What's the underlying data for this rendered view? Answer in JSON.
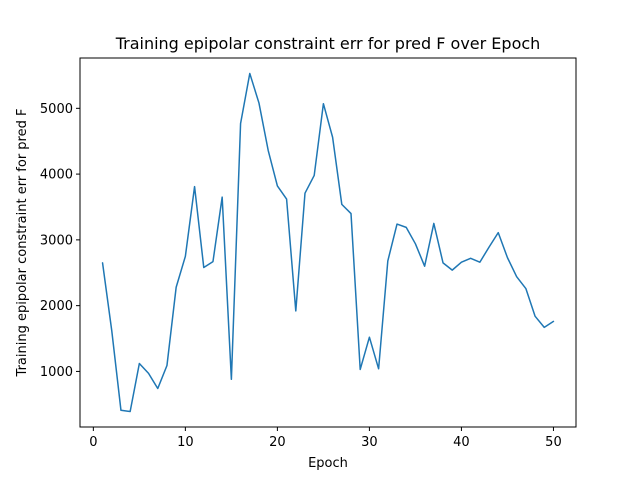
{
  "chart_data": {
    "type": "line",
    "title": "Training epipolar constraint err for pred F over Epoch",
    "xlabel": "Epoch",
    "ylabel": "Training epipolar constraint err for pred F",
    "xlim": [
      -1.45,
      52.45
    ],
    "ylim": [
      155,
      5765
    ],
    "xticks": [
      0,
      10,
      20,
      30,
      40,
      50
    ],
    "yticks": [
      1000,
      2000,
      3000,
      4000,
      5000
    ],
    "grid": false,
    "series": [
      {
        "color": "#1f77b4",
        "x": [
          1,
          2,
          3,
          4,
          5,
          6,
          7,
          8,
          9,
          10,
          11,
          12,
          13,
          14,
          15,
          16,
          17,
          18,
          19,
          20,
          21,
          22,
          23,
          24,
          25,
          26,
          27,
          28,
          29,
          30,
          31,
          32,
          33,
          34,
          35,
          36,
          37,
          38,
          39,
          40,
          41,
          42,
          43,
          44,
          45,
          46,
          47,
          48,
          49,
          50
        ],
        "y": [
          2650,
          1620,
          410,
          390,
          1120,
          970,
          740,
          1090,
          2280,
          2750,
          3810,
          2580,
          2670,
          3650,
          880,
          4770,
          5530,
          5080,
          4360,
          3820,
          3620,
          1920,
          3710,
          3980,
          5070,
          4560,
          3540,
          3400,
          1030,
          1520,
          1040,
          2680,
          3240,
          3190,
          2940,
          2600,
          3250,
          2650,
          2540,
          2660,
          2720,
          2660,
          2890,
          3110,
          2730,
          2440,
          2260,
          1840,
          1670,
          1760
        ]
      }
    ]
  }
}
